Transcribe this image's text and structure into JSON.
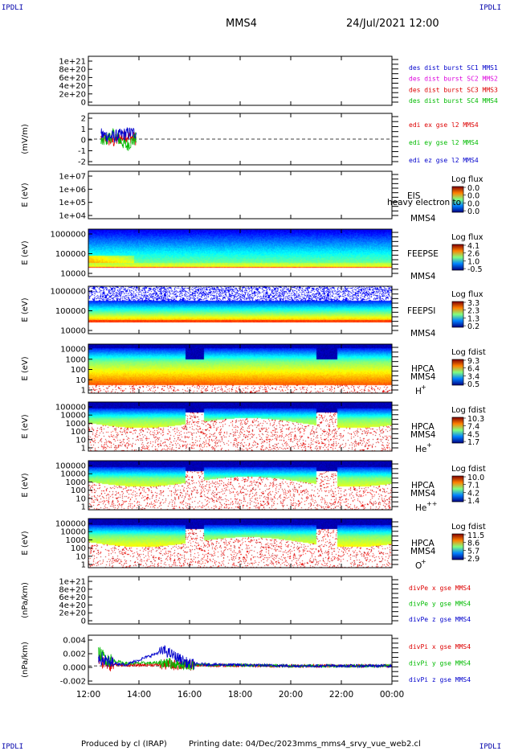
{
  "header": {
    "corner_tl": "IPDLI",
    "corner_tr": "IPDLI",
    "corner_bl": "IPDLI",
    "corner_br": "IPDLI",
    "spacecraft": "MMS4",
    "datetime": "24/Jul/2021 12:00"
  },
  "footer": {
    "produced_by": "Produced by cl (IRAP)",
    "printing_date": "Printing date: 04/Dec/2023",
    "script": "mms_mms4_srvy_vue_web2.cl"
  },
  "colors": {
    "red": "#dd0000",
    "magenta": "#dd00dd",
    "green": "#00bb00",
    "blue": "#0000cc",
    "label_dark": "#000000"
  },
  "chart_data": [
    {
      "type": "line",
      "panel": "dist-flags",
      "ylabel": "",
      "yticks": [
        "1e+21",
        "8e+20",
        "6e+20",
        "4e+20",
        "2e+20",
        "0"
      ],
      "ylim": [
        0,
        1.2e+21
      ],
      "dashed_zero": true,
      "legend": [
        {
          "name": "des dist burst SC1 MMS1",
          "color": "#0000cc"
        },
        {
          "name": "des dist burst SC2 MMS2",
          "color": "#dd00dd"
        },
        {
          "name": "des dist burst SC3 MMS3",
          "color": "#dd0000"
        },
        {
          "name": "des dist burst SC4 MMS4",
          "color": "#00bb00"
        }
      ],
      "series": []
    },
    {
      "type": "line",
      "panel": "edi",
      "ylabel": "(mV/m)",
      "yticks": [
        "2",
        "1",
        "0",
        "-1",
        "-2"
      ],
      "ylim": [
        -2.3,
        2.3
      ],
      "dashed_zero": true,
      "legend": [
        {
          "name": "edi ex gse l2 MMS4",
          "color": "#dd0000"
        },
        {
          "name": "edi ey gse l2 MMS4",
          "color": "#00bb00"
        },
        {
          "name": "edi ez gse l2 MMS4",
          "color": "#0000cc"
        }
      ],
      "series": [
        {
          "name": "edi ex gse l2 MMS4",
          "color": "#dd0000",
          "x_hours": [
            12.5,
            13.0,
            13.5,
            13.9
          ],
          "y": [
            0.1,
            -0.2,
            0.3,
            0.0
          ]
        },
        {
          "name": "edi ey gse l2 MMS4",
          "color": "#00bb00",
          "x_hours": [
            12.5,
            13.0,
            13.5,
            13.9
          ],
          "y": [
            -0.3,
            0.4,
            -0.6,
            0.1
          ]
        },
        {
          "name": "edi ez gse l2 MMS4",
          "color": "#0000cc",
          "x_hours": [
            12.5,
            13.0,
            13.5,
            13.9
          ],
          "y": [
            0.4,
            0.2,
            0.5,
            0.6
          ]
        }
      ]
    },
    {
      "type": "heatmap",
      "panel": "eis",
      "ylabel": "E (eV)",
      "yticks": [
        "1e+07",
        "1e+06",
        "1e+05",
        "1e+04"
      ],
      "ylim": [
        10000.0,
        10000000.0
      ],
      "yscale": "log",
      "instrument": "EIS",
      "sc": "MMS4",
      "overlay": "heavy electron to",
      "cb_title": "Log flux",
      "cb_ticks": [
        "0.0",
        "0.0",
        "0.0",
        "0.0"
      ],
      "spectrum": "empty"
    },
    {
      "type": "heatmap",
      "panel": "feeps-e",
      "ylabel": "E (eV)",
      "yticks": [
        "1000000",
        "100000",
        "10000"
      ],
      "ylim": [
        10000.0,
        1000000.0
      ],
      "yscale": "log",
      "instrument": "FEEPSE",
      "sc": "MMS4",
      "cb_title": "Log flux",
      "cb_ticks": [
        "4.1",
        "2.6",
        "1.0",
        "-0.5"
      ],
      "spectrum": "feepse"
    },
    {
      "type": "heatmap",
      "panel": "feeps-i",
      "ylabel": "E (eV)",
      "yticks": [
        "1000000",
        "100000",
        "10000"
      ],
      "ylim": [
        10000.0,
        1000000.0
      ],
      "yscale": "log",
      "instrument": "FEEPSI",
      "sc": "MMS4",
      "cb_title": "Log flux",
      "cb_ticks": [
        "3.3",
        "2.3",
        "1.3",
        "0.2"
      ],
      "spectrum": "feepsi"
    },
    {
      "type": "heatmap",
      "panel": "hpca-h",
      "ylabel": "E (eV)",
      "yticks": [
        "10000",
        "1000",
        "100",
        "10",
        "1"
      ],
      "ylim": [
        1,
        30000.0
      ],
      "yscale": "log",
      "instrument": "HPCA",
      "sc": "MMS4",
      "species": "H",
      "charge": "+",
      "cb_title": "Log fdist",
      "cb_ticks": [
        "9.3",
        "6.4",
        "3.4",
        "0.5"
      ],
      "spectrum": "hpca-h"
    },
    {
      "type": "heatmap",
      "panel": "hpca-he",
      "ylabel": "E (eV)",
      "yticks": [
        "100000",
        "10000",
        "1000",
        "100",
        "10",
        "1"
      ],
      "ylim": [
        1,
        100000.0
      ],
      "yscale": "log",
      "instrument": "HPCA",
      "sc": "MMS4",
      "species": "He",
      "charge": "+",
      "cb_title": "Log fdist",
      "cb_ticks": [
        "10.3",
        "7.4",
        "4.5",
        "1.7"
      ],
      "spectrum": "hpca-he"
    },
    {
      "type": "heatmap",
      "panel": "hpca-hepp",
      "ylabel": "E (eV)",
      "yticks": [
        "100000",
        "10000",
        "1000",
        "100",
        "10",
        "1"
      ],
      "ylim": [
        1,
        100000.0
      ],
      "yscale": "log",
      "instrument": "HPCA",
      "sc": "MMS4",
      "species": "He",
      "charge": "++",
      "cb_title": "Log fdist",
      "cb_ticks": [
        "10.0",
        "7.1",
        "4.2",
        "1.4"
      ],
      "spectrum": "hpca-hepp"
    },
    {
      "type": "heatmap",
      "panel": "hpca-o",
      "ylabel": "E (eV)",
      "yticks": [
        "100000",
        "10000",
        "1000",
        "100",
        "10",
        "1"
      ],
      "ylim": [
        1,
        100000.0
      ],
      "yscale": "log",
      "instrument": "HPCA",
      "sc": "MMS4",
      "species": "O",
      "charge": "+",
      "cb_title": "Log fdist",
      "cb_ticks": [
        "11.5",
        "8.6",
        "5.7",
        "2.9"
      ],
      "spectrum": "hpca-o"
    },
    {
      "type": "line",
      "panel": "divpe",
      "ylabel": "(nPa/km)",
      "yticks": [
        "1e+21",
        "8e+20",
        "6e+20",
        "4e+20",
        "2e+20",
        "0"
      ],
      "ylim": [
        0,
        1.2e+21
      ],
      "dashed_zero": true,
      "legend": [
        {
          "name": "divPe x gse MMS4",
          "color": "#dd0000"
        },
        {
          "name": "divPe y gse MMS4",
          "color": "#00bb00"
        },
        {
          "name": "divPe z gse MMS4",
          "color": "#0000cc"
        }
      ],
      "series": []
    },
    {
      "type": "line",
      "panel": "divpi",
      "ylabel": "(nPa/km)",
      "yticks": [
        "0.004",
        "0.002",
        "0.000",
        "-0.002"
      ],
      "ylim": [
        -0.003,
        0.005
      ],
      "dashed_zero": true,
      "legend": [
        {
          "name": "divPi x gse MMS4",
          "color": "#dd0000"
        },
        {
          "name": "divPi y gse MMS4",
          "color": "#00bb00"
        },
        {
          "name": "divPi z gse MMS4",
          "color": "#0000cc"
        }
      ],
      "series": [
        {
          "name": "divPi x gse MMS4",
          "color": "#dd0000",
          "x_hours": [
            12.4,
            12.8,
            13.5,
            15.0,
            16.0,
            20.0,
            24.0
          ],
          "y": [
            0.001,
            0.0003,
            0.0001,
            0.0002,
            0.0001,
            0.0,
            0.0
          ]
        },
        {
          "name": "divPi y gse MMS4",
          "color": "#00bb00",
          "x_hours": [
            12.4,
            12.8,
            13.5,
            15.0,
            16.0,
            20.0,
            24.0
          ],
          "y": [
            0.002,
            0.001,
            0.0004,
            0.0005,
            0.0002,
            0.0,
            0.0
          ]
        },
        {
          "name": "divPi z gse MMS4",
          "color": "#0000cc",
          "x_hours": [
            12.4,
            12.8,
            13.5,
            15.0,
            16.0,
            20.0,
            24.0
          ],
          "y": [
            0.0015,
            0.0005,
            0.0002,
            0.0025,
            0.0003,
            0.0,
            0.0
          ]
        }
      ]
    }
  ],
  "time_axis": {
    "ticks": [
      "12:00",
      "14:00",
      "16:00",
      "18:00",
      "20:00",
      "22:00",
      "00:00"
    ],
    "start_hour": 12,
    "end_hour": 24
  }
}
